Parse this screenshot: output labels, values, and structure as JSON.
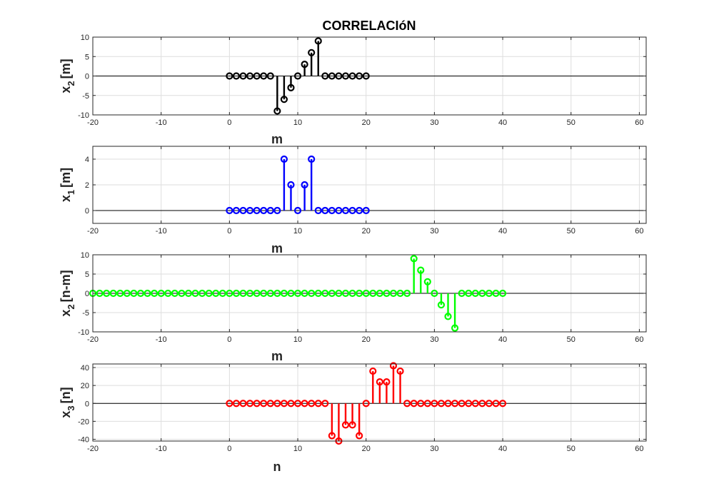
{
  "figure_title": "CORRELACIóN",
  "chart_data": [
    {
      "type": "stem",
      "ylabel_main": "x",
      "ylabel_sub": "2",
      "ylabel_rest": "[m]",
      "xlabel": "m",
      "color": "#000000",
      "xlim": [
        -20,
        61
      ],
      "ylim": [
        -10,
        10
      ],
      "xticks": [
        -20,
        -10,
        0,
        10,
        20,
        30,
        40,
        50,
        60
      ],
      "yticks": [
        -10,
        -5,
        0,
        5,
        10
      ],
      "x_start": 0,
      "values": [
        0,
        0,
        0,
        0,
        0,
        0,
        0,
        -9,
        -6,
        -3,
        0,
        3,
        6,
        9,
        0,
        0,
        0,
        0,
        0,
        0,
        0
      ]
    },
    {
      "type": "stem",
      "ylabel_main": "x",
      "ylabel_sub": "1",
      "ylabel_rest": "[m]",
      "xlabel": "m",
      "color": "#0000ff",
      "xlim": [
        -20,
        61
      ],
      "ylim": [
        -1,
        5
      ],
      "xticks": [
        -20,
        -10,
        0,
        10,
        20,
        30,
        40,
        50,
        60
      ],
      "yticks": [
        0,
        2,
        4
      ],
      "x_start": 0,
      "values": [
        0,
        0,
        0,
        0,
        0,
        0,
        0,
        0,
        4,
        2,
        0,
        2,
        4,
        0,
        0,
        0,
        0,
        0,
        0,
        0,
        0
      ]
    },
    {
      "type": "stem",
      "ylabel_main": "x",
      "ylabel_sub": "2",
      "ylabel_rest": "[n-m]",
      "xlabel": "m",
      "color": "#00ff00",
      "xlim": [
        -20,
        61
      ],
      "ylim": [
        -10,
        10
      ],
      "xticks": [
        -20,
        -10,
        0,
        10,
        20,
        30,
        40,
        50,
        60
      ],
      "yticks": [
        -10,
        -5,
        0,
        5,
        10
      ],
      "x_start": -20,
      "values": [
        0,
        0,
        0,
        0,
        0,
        0,
        0,
        0,
        0,
        0,
        0,
        0,
        0,
        0,
        0,
        0,
        0,
        0,
        0,
        0,
        0,
        0,
        0,
        0,
        0,
        0,
        0,
        0,
        0,
        0,
        0,
        0,
        0,
        0,
        0,
        0,
        0,
        0,
        0,
        0,
        0,
        0,
        0,
        0,
        0,
        0,
        0,
        9,
        6,
        3,
        0,
        -3,
        -6,
        -9,
        0,
        0,
        0,
        0,
        0,
        0,
        0
      ]
    },
    {
      "type": "stem",
      "ylabel_main": "x",
      "ylabel_sub": "3",
      "ylabel_rest": "[n]",
      "xlabel": "n",
      "color": "#ff0000",
      "xlim": [
        -20,
        61
      ],
      "ylim": [
        -42,
        44
      ],
      "xticks": [
        -20,
        -10,
        0,
        10,
        20,
        30,
        40,
        50,
        60
      ],
      "yticks": [
        -40,
        -20,
        0,
        20,
        40
      ],
      "x_start": 0,
      "values": [
        0,
        0,
        0,
        0,
        0,
        0,
        0,
        0,
        0,
        0,
        0,
        0,
        0,
        0,
        0,
        -36,
        -42,
        -24,
        -24,
        -36,
        0,
        36,
        24,
        24,
        42,
        36,
        0,
        0,
        0,
        0,
        0,
        0,
        0,
        0,
        0,
        0,
        0,
        0,
        0,
        0,
        0
      ]
    }
  ]
}
